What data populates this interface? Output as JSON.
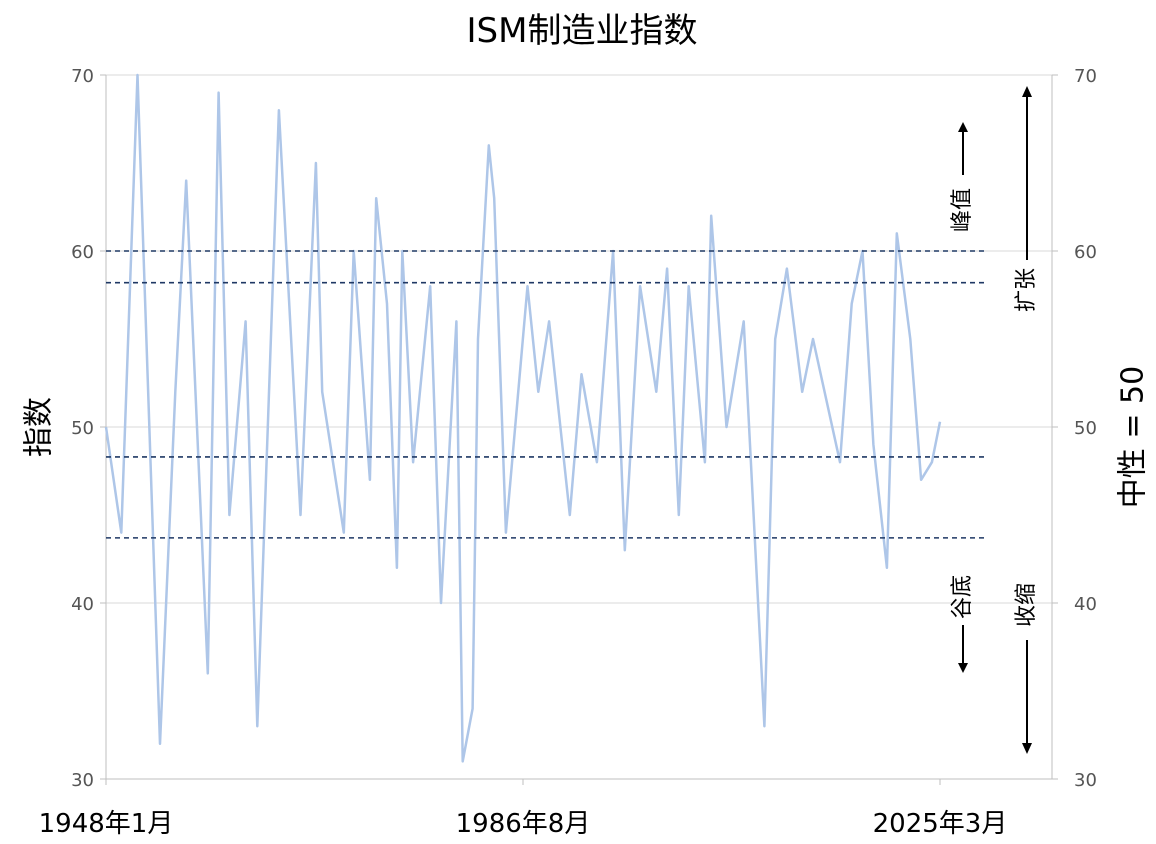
{
  "chart_data": {
    "type": "line",
    "title": "ISM制造业指数",
    "ylabel_left": "指数",
    "ylabel_right": "中性 = 50",
    "ylim": [
      30,
      70
    ],
    "yticks": [
      30,
      40,
      50,
      60,
      70
    ],
    "x_range": [
      "1948年1月",
      "2025年3月"
    ],
    "xticks": [
      "1948年1月",
      "1986年8月",
      "2025年3月"
    ],
    "grid": true,
    "line_color": "#aec6e8",
    "ref_color": "#1f3864",
    "reference_lines": [
      60.0,
      58.2,
      48.3,
      43.7
    ],
    "annotations": {
      "peak": "峰值",
      "trough": "谷底",
      "expansion": "扩张",
      "contraction": "收缩"
    },
    "series": [
      {
        "x": [
          "1948年1月",
          "1949年6月",
          "1950年12月",
          "1953年1月",
          "1954年6月",
          "1955年6月",
          "1957年6月",
          "1958年6月",
          "1959年6月",
          "1960年12月",
          "1962年1月",
          "1964年1月",
          "1966年1月",
          "1967年6月",
          "1968年1月",
          "1970年1月",
          "1970年12月",
          "1972年6月",
          "1973年1月",
          "1974年1月",
          "1974年12月",
          "1975年6月",
          "1976年6月",
          "1978年1月",
          "1979年1月",
          "1980年6月",
          "1981年1月",
          "1981年12月",
          "1982年6月",
          "1983年6月",
          "1983年12月",
          "1985年1月",
          "1986年1月",
          "1987年1月",
          "1988年1月",
          "1989年1月",
          "1990年12月",
          "1992年1月",
          "1993年6月",
          "1994年12月",
          "1996年1月",
          "1997年6月",
          "1998年12月",
          "1999年12月",
          "2001年1月",
          "2001年12月",
          "2003年6月",
          "2004年1月",
          "2005年6月",
          "2007年1月",
          "2008年12月",
          "2009年12月",
          "2011年1月",
          "2012年6月",
          "2013年6月",
          "2015年12月",
          "2017年1月",
          "2018年1月",
          "2019年1月",
          "2020年4月",
          "2021年3月",
          "2022年6月",
          "2023年6月",
          "2024年6月",
          "2025年3月"
        ],
        "y": [
          50,
          44,
          70,
          32,
          52,
          64,
          36,
          69,
          45,
          56,
          33,
          68,
          45,
          65,
          52,
          44,
          60,
          47,
          63,
          57,
          42,
          60,
          48,
          58,
          40,
          56,
          31,
          34,
          55,
          66,
          63,
          44,
          51,
          58,
          52,
          56,
          45,
          53,
          48,
          60,
          43,
          58,
          52,
          59,
          45,
          58,
          48,
          62,
          50,
          56,
          33,
          55,
          59,
          52,
          55,
          48,
          57,
          60,
          49,
          42,
          61,
          55,
          47,
          48,
          50.3
        ]
      }
    ]
  }
}
